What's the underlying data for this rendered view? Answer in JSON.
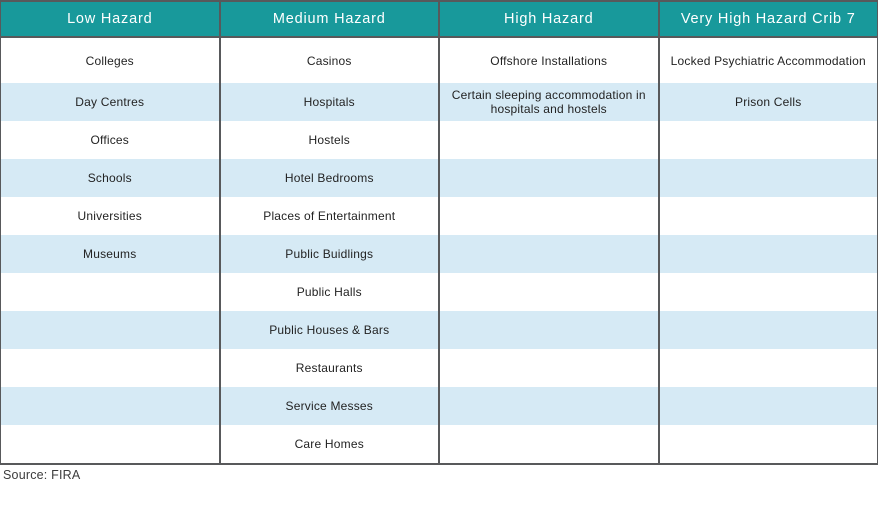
{
  "chart_data": {
    "type": "table",
    "columns": [
      {
        "header": "Low Hazard",
        "items": [
          "Colleges",
          "Day Centres",
          "Offices",
          "Schools",
          "Universities",
          "Museums",
          "",
          "",
          "",
          "",
          ""
        ]
      },
      {
        "header": "Medium Hazard",
        "items": [
          "Casinos",
          "Hospitals",
          "Hostels",
          "Hotel Bedrooms",
          "Places of Entertainment",
          "Public Buidlings",
          "Public Halls",
          "Public Houses & Bars",
          "Restaurants",
          "Service Messes",
          "Care Homes"
        ]
      },
      {
        "header": "High Hazard",
        "items": [
          "Offshore Installations",
          "Certain sleeping accommodation in hospitals and hostels",
          "",
          "",
          "",
          "",
          "",
          "",
          "",
          "",
          ""
        ]
      },
      {
        "header": "Very High Hazard Crib 7",
        "items": [
          "Locked Psychiatric Accommodation",
          "Prison Cells",
          "",
          "",
          "",
          "",
          "",
          "",
          "",
          "",
          ""
        ]
      }
    ],
    "row_count": 11,
    "layout_hints": {
      "striping": "even body rows light blue, odd rows white",
      "header_style": "teal background, white text",
      "column_dividers": "dark gray vertical lines"
    }
  },
  "source": {
    "label": "Source: FIRA"
  },
  "colors": {
    "header_bg": "#18999b",
    "header_text": "#ffffff",
    "stripe": "#d6eaf5",
    "border": "#58595b",
    "body_text": "#232323"
  }
}
